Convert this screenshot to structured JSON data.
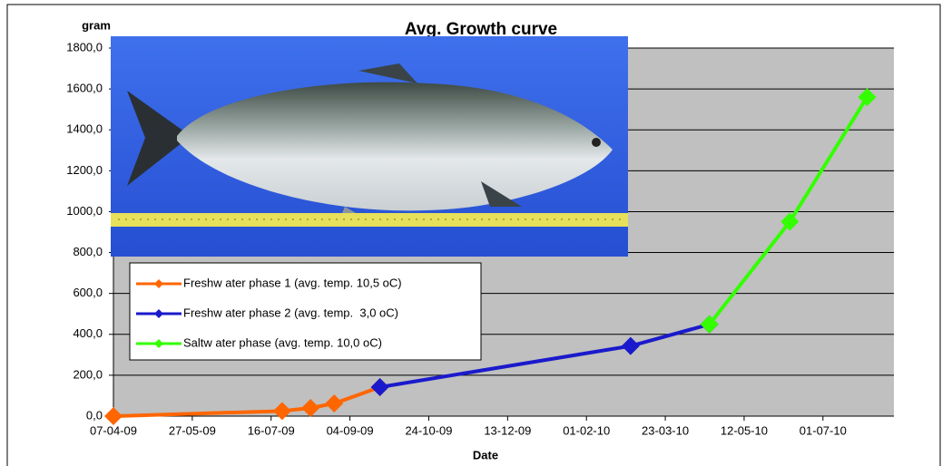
{
  "chart_data": {
    "type": "line",
    "title": "Avg. Growth curve",
    "y_label": "gram",
    "x_label": "Date",
    "xlim": [
      "2009-04-07",
      "2010-08-15"
    ],
    "xticks": [
      {
        "value": "2009-04-07",
        "label": "07-04-09"
      },
      {
        "value": "2009-05-27",
        "label": "27-05-09"
      },
      {
        "value": "2009-07-16",
        "label": "16-07-09"
      },
      {
        "value": "2009-09-04",
        "label": "04-09-09"
      },
      {
        "value": "2009-10-24",
        "label": "24-10-09"
      },
      {
        "value": "2009-12-13",
        "label": "13-12-09"
      },
      {
        "value": "2010-02-01",
        "label": "01-02-10"
      },
      {
        "value": "2010-03-23",
        "label": "23-03-10"
      },
      {
        "value": "2010-05-12",
        "label": "12-05-10"
      },
      {
        "value": "2010-07-01",
        "label": "01-07-10"
      }
    ],
    "ylim": [
      0,
      1800
    ],
    "yticks": [
      {
        "value": 0,
        "label": "0,0"
      },
      {
        "value": 200,
        "label": "200,0"
      },
      {
        "value": 400,
        "label": "400,0"
      },
      {
        "value": 600,
        "label": "600,0"
      },
      {
        "value": 800,
        "label": "800,0"
      },
      {
        "value": 1000,
        "label": "1000,0"
      },
      {
        "value": 1200,
        "label": "1200,0"
      },
      {
        "value": 1400,
        "label": "1400,0"
      },
      {
        "value": 1600,
        "label": "1600,0"
      },
      {
        "value": 1800,
        "label": "1800,0"
      }
    ],
    "grid": true,
    "series": [
      {
        "name": "Freshw ater phase 1 (avg. temp. 10,5 oC)",
        "color": "#ff6600",
        "x": [
          "2009-04-07",
          "2009-07-23",
          "2009-08-10",
          "2009-08-25",
          "2009-09-23"
        ],
        "values": [
          0,
          25,
          40,
          62,
          142
        ]
      },
      {
        "name": "Freshw ater phase 2 (avg. temp.  3,0 oC)",
        "color": "#1a1acc",
        "x": [
          "2009-09-23",
          "2010-03-01",
          "2010-04-20"
        ],
        "values": [
          142,
          343,
          449
        ]
      },
      {
        "name": "Saltw ater phase (avg. temp. 10,0 oC)",
        "color": "#33ff00",
        "x": [
          "2010-04-20",
          "2010-06-10",
          "2010-07-29"
        ],
        "values": [
          449,
          951,
          1560
        ]
      }
    ]
  }
}
